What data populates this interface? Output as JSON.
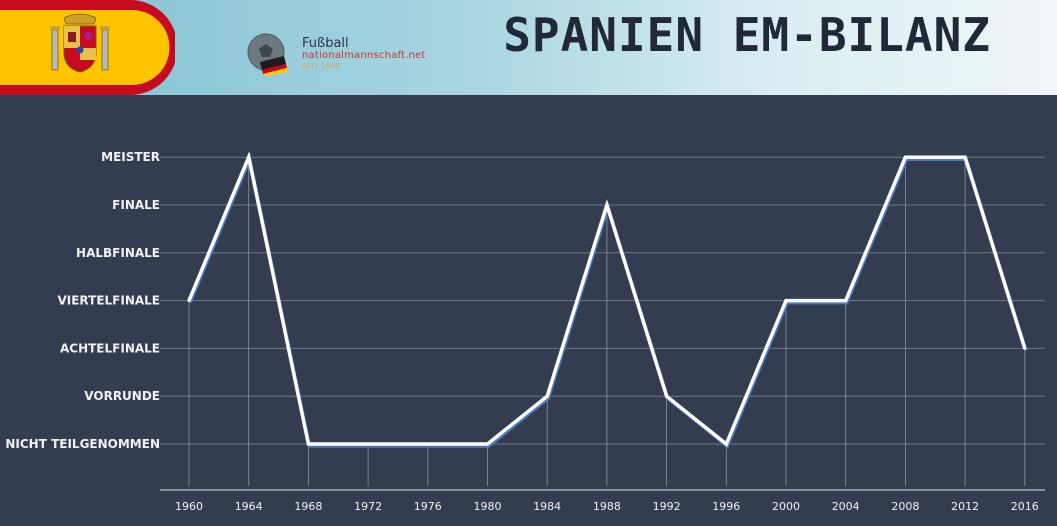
{
  "header": {
    "title": "SPANIEN EM-BILANZ",
    "logo_title": "Fußball",
    "logo_subtitle": "nationalmannschaft.net",
    "logo_tag": "SEIT 2006",
    "flag_colors": [
      "#c60b1e",
      "#ffc400"
    ],
    "logo_icon": "soccer-ball-icon"
  },
  "chart_data": {
    "type": "line",
    "title": "SPANIEN EM-BILANZ",
    "categories": [
      "Nicht teilgenommen",
      "Vorrunde",
      "Achtelfinale",
      "Viertelfinale",
      "Halbfinale",
      "Finale",
      "Meister"
    ],
    "x": [
      "1960",
      "1964",
      "1968",
      "1972",
      "1976",
      "1980",
      "1984",
      "1988",
      "1992",
      "1996",
      "2000",
      "2004",
      "2008",
      "2012",
      "2016"
    ],
    "series": [
      {
        "values": [
          3,
          6,
          0,
          0,
          0,
          0,
          1,
          5,
          1,
          0,
          3,
          3,
          6,
          6,
          2
        ]
      }
    ],
    "ylim": [
      0,
      6
    ],
    "grid": true,
    "line_color": "#ffffff",
    "shadow_color": "#4a78c2"
  }
}
